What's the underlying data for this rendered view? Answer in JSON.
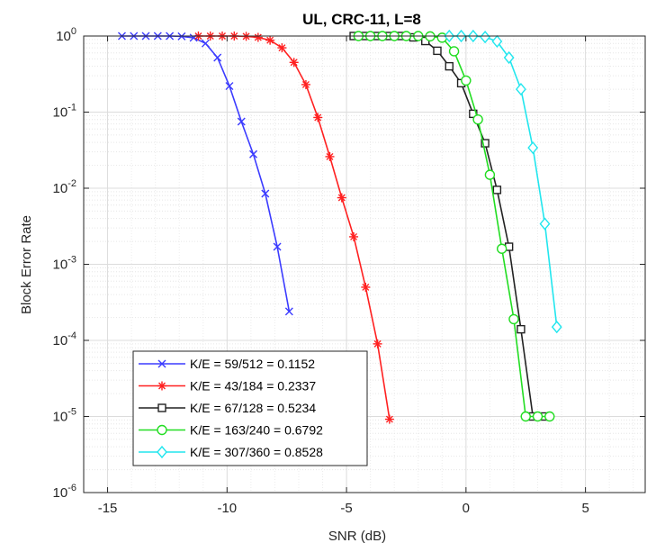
{
  "chart_data": {
    "type": "line",
    "title": "UL, CRC-11, L=8",
    "xlabel": "SNR (dB)",
    "ylabel": "Block Error Rate",
    "xscale": "linear",
    "yscale": "log",
    "xlim": [
      -16,
      7.5
    ],
    "ylim": [
      1e-06,
      1
    ],
    "xticks": [
      -15,
      -10,
      -5,
      0,
      5
    ],
    "xtick_labels": [
      "-15",
      "-10",
      "-5",
      "0",
      "5"
    ],
    "yticks": [
      {
        "value": 1,
        "base": "10",
        "exp": "0"
      },
      {
        "value": 0.1,
        "base": "10",
        "exp": "-1"
      },
      {
        "value": 0.01,
        "base": "10",
        "exp": "-2"
      },
      {
        "value": 0.001,
        "base": "10",
        "exp": "-3"
      },
      {
        "value": 0.0001,
        "base": "10",
        "exp": "-4"
      },
      {
        "value": 1e-05,
        "base": "10",
        "exp": "-5"
      },
      {
        "value": 1e-06,
        "base": "10",
        "exp": "-6"
      }
    ],
    "grid": true,
    "minor_grid": true,
    "legend_position": "bottom-left",
    "series": [
      {
        "name": "K/E = 59/512 = 0.1152",
        "color": "#3b3bff",
        "marker": "x",
        "x": [
          -14.4,
          -13.9,
          -13.4,
          -12.9,
          -12.4,
          -11.9,
          -11.4,
          -10.9,
          -10.4,
          -9.9,
          -9.4,
          -8.9,
          -8.4,
          -7.9,
          -7.4
        ],
        "y": [
          1,
          1,
          1,
          1,
          1,
          0.99,
          0.95,
          0.8,
          0.52,
          0.22,
          0.075,
          0.028,
          0.0085,
          0.0017,
          0.00024
        ]
      },
      {
        "name": "K/E = 43/184 = 0.2337",
        "color": "#ff2020",
        "marker": "star",
        "x": [
          -11.2,
          -10.7,
          -10.2,
          -9.7,
          -9.2,
          -8.7,
          -8.2,
          -7.7,
          -7.2,
          -6.7,
          -6.2,
          -5.7,
          -5.2,
          -4.7,
          -4.2,
          -3.7,
          -3.2
        ],
        "y": [
          1,
          1,
          1,
          1,
          0.99,
          0.96,
          0.88,
          0.7,
          0.45,
          0.23,
          0.085,
          0.026,
          0.0075,
          0.0023,
          0.0005,
          9e-05,
          9.2e-06
        ]
      },
      {
        "name": "K/E = 67/128 = 0.5234",
        "color": "#222222",
        "marker": "square",
        "x": [
          -4.7,
          -4.2,
          -3.7,
          -3.2,
          -2.7,
          -2.2,
          -1.7,
          -1.2,
          -0.7,
          -0.2,
          0.3,
          0.8,
          1.3,
          1.8,
          2.3,
          2.8,
          3.3
        ],
        "y": [
          1,
          1,
          1,
          1,
          1,
          0.96,
          0.86,
          0.64,
          0.4,
          0.24,
          0.095,
          0.039,
          0.0095,
          0.0017,
          0.00014,
          1e-05,
          1e-05
        ]
      },
      {
        "name": "K/E = 163/240 = 0.6792",
        "color": "#22dd22",
        "marker": "circle",
        "x": [
          -4.5,
          -4.0,
          -3.5,
          -3.0,
          -2.5,
          -2.0,
          -1.5,
          -1.0,
          -0.5,
          0.0,
          0.5,
          1.0,
          1.5,
          2.0,
          2.5,
          3.0,
          3.5
        ],
        "y": [
          1,
          1,
          1,
          1,
          1,
          1,
          0.99,
          0.95,
          0.63,
          0.26,
          0.08,
          0.015,
          0.0016,
          0.00019,
          1e-05,
          1e-05,
          1e-05
        ]
      },
      {
        "name": "K/E = 307/360 = 0.8528",
        "color": "#22e6ee",
        "marker": "diamond",
        "x": [
          -0.7,
          -0.2,
          0.3,
          0.8,
          1.3,
          1.8,
          2.3,
          2.8,
          3.3,
          3.8
        ],
        "y": [
          1,
          1,
          1,
          0.97,
          0.85,
          0.52,
          0.2,
          0.034,
          0.0034,
          0.00015
        ]
      }
    ]
  }
}
